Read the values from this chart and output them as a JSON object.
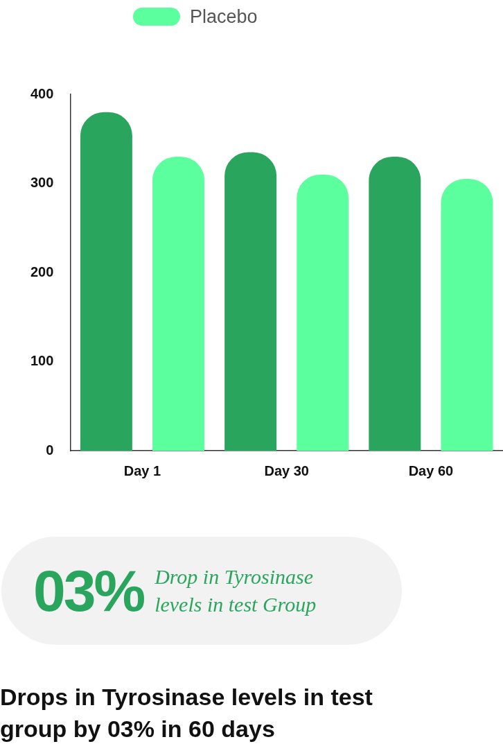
{
  "chart_data": {
    "type": "bar",
    "title": "Drops in Tyrosinase levels in test group by 03% in 60 days",
    "categories": [
      "Day 1",
      "Day 30",
      "Day 60"
    ],
    "series": [
      {
        "color": "#2aa55e",
        "values": [
          380,
          335,
          330
        ]
      },
      {
        "name": "Placebo",
        "color": "#5cff9d",
        "values": [
          330,
          310,
          305
        ]
      }
    ],
    "ylim": [
      0,
      400
    ],
    "yticks": [
      0,
      100,
      200,
      300,
      400
    ],
    "grid": false,
    "legend": "top",
    "annotations": [
      "03%",
      "Drop in Tyrosinase levels in test Group"
    ]
  }
}
